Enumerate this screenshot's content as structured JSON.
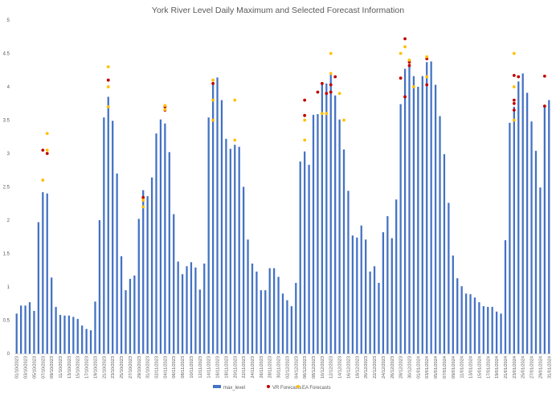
{
  "chart_data": {
    "type": "bar",
    "title": "York River Level Daily Maximum and Selected Forecast Information",
    "xlabel": "",
    "ylabel": "",
    "ylim": [
      0,
      5
    ],
    "yticks": [
      0,
      0.5,
      1,
      1.5,
      2,
      2.5,
      3,
      3.5,
      4,
      4.5,
      5
    ],
    "ytick_labels": [
      "0",
      "0.5",
      "1",
      "1.5",
      "2",
      "2.5",
      "3",
      "3.5",
      "4",
      "4.5",
      "5"
    ],
    "grid": false,
    "legend_position": "bottom",
    "colors": {
      "max_level": "#4472C4",
      "vr": "#C00000",
      "ea": "#FFC000",
      "axis": "#D9D9D9",
      "text": "#595959"
    },
    "x_tick_labels": [
      "01/10/2023",
      "03/10/2023",
      "05/10/2023",
      "07/10/2023",
      "09/10/2023",
      "11/10/2023",
      "13/10/2023",
      "15/10/2023",
      "17/10/2023",
      "19/10/2023",
      "21/10/2023",
      "23/10/2023",
      "25/10/2023",
      "27/10/2023",
      "29/10/2023",
      "31/10/2023",
      "02/11/2023",
      "04/11/2023",
      "06/11/2023",
      "08/11/2023",
      "10/11/2023",
      "12/11/2023",
      "14/11/2023",
      "16/11/2023",
      "18/11/2023",
      "20/11/2023",
      "22/11/2023",
      "24/11/2023",
      "26/11/2023",
      "28/11/2023",
      "30/11/2023",
      "02/12/2023",
      "04/12/2023",
      "06/12/2023",
      "08/12/2023",
      "10/12/2023",
      "12/12/2023",
      "14/12/2023",
      "16/12/2023",
      "18/12/2023",
      "20/12/2023",
      "22/12/2023",
      "24/12/2023",
      "26/12/2023",
      "28/12/2023",
      "30/12/2023",
      "01/01/2024",
      "03/01/2024",
      "05/01/2024",
      "07/01/2024",
      "09/01/2024",
      "11/01/2024",
      "13/01/2024",
      "15/01/2024",
      "17/01/2024",
      "19/01/2024",
      "21/01/2024",
      "23/01/2024",
      "25/01/2024",
      "27/01/2024",
      "29/01/2024",
      "31/01/2024"
    ],
    "series": [
      {
        "name": "max_level",
        "values": [
          0.6,
          0.72,
          0.72,
          0.77,
          0.64,
          1.97,
          2.42,
          2.4,
          1.14,
          0.7,
          0.58,
          0.57,
          0.57,
          0.55,
          0.52,
          0.42,
          0.37,
          0.35,
          0.78,
          2.0,
          3.54,
          3.85,
          3.49,
          2.7,
          1.46,
          0.95,
          1.12,
          1.17,
          2.02,
          2.45,
          2.36,
          2.64,
          3.3,
          3.51,
          3.45,
          3.02,
          2.09,
          1.38,
          1.19,
          1.31,
          1.37,
          1.29,
          0.96,
          1.35,
          3.54,
          4.07,
          4.14,
          3.8,
          3.22,
          3.07,
          3.13,
          3.1,
          2.5,
          1.71,
          1.35,
          1.23,
          0.95,
          0.95,
          1.28,
          1.28,
          1.15,
          0.9,
          0.8,
          0.71,
          1.06,
          2.88,
          3.03,
          2.83,
          3.58,
          3.59,
          4.05,
          4.05,
          4.18,
          3.87,
          3.51,
          3.06,
          2.44,
          1.77,
          1.74,
          1.92,
          1.71,
          1.23,
          1.31,
          1.06,
          1.82,
          2.06,
          1.73,
          2.31,
          3.74,
          4.27,
          4.34,
          4.16,
          4.0,
          4.16,
          4.37,
          4.38,
          4.03,
          3.56,
          2.99,
          2.26,
          1.47,
          1.13,
          1.01,
          0.9,
          0.89,
          0.84,
          0.77,
          0.71,
          0.7,
          0.7,
          0.63,
          0.6,
          1.7,
          3.46,
          3.7,
          4.08,
          4.2,
          3.91,
          3.48,
          3.04,
          2.49,
          3.71,
          3.8
        ]
      },
      {
        "name": "VR Forecasts",
        "points": [
          {
            "x": 6,
            "y": 3.05
          },
          {
            "x": 7,
            "y": 3.0
          },
          {
            "x": 21,
            "y": 4.1
          },
          {
            "x": 29,
            "y": 2.34
          },
          {
            "x": 34,
            "y": 3.7
          },
          {
            "x": 34,
            "y": 3.65
          },
          {
            "x": 45,
            "y": 4.05
          },
          {
            "x": 66,
            "y": 3.8
          },
          {
            "x": 66,
            "y": 3.57
          },
          {
            "x": 69,
            "y": 3.92
          },
          {
            "x": 70,
            "y": 4.05
          },
          {
            "x": 71,
            "y": 3.9
          },
          {
            "x": 72,
            "y": 3.92
          },
          {
            "x": 72,
            "y": 4.03
          },
          {
            "x": 73,
            "y": 4.15
          },
          {
            "x": 88,
            "y": 4.13
          },
          {
            "x": 89,
            "y": 3.85
          },
          {
            "x": 89,
            "y": 4.72
          },
          {
            "x": 90,
            "y": 4.32
          },
          {
            "x": 90,
            "y": 4.37
          },
          {
            "x": 94,
            "y": 4.42
          },
          {
            "x": 94,
            "y": 4.03
          },
          {
            "x": 114,
            "y": 4.17
          },
          {
            "x": 114,
            "y": 3.8
          },
          {
            "x": 114,
            "y": 3.75
          },
          {
            "x": 114,
            "y": 3.65
          },
          {
            "x": 115,
            "y": 4.15
          },
          {
            "x": 121,
            "y": 4.16
          },
          {
            "x": 121,
            "y": 3.71
          }
        ]
      },
      {
        "name": "EA Forecasts",
        "points": [
          {
            "x": 6,
            "y": 2.6
          },
          {
            "x": 7,
            "y": 3.3
          },
          {
            "x": 7,
            "y": 3.05
          },
          {
            "x": 21,
            "y": 4.3
          },
          {
            "x": 21,
            "y": 4.0
          },
          {
            "x": 21,
            "y": 3.7
          },
          {
            "x": 29,
            "y": 2.3
          },
          {
            "x": 29,
            "y": 2.2
          },
          {
            "x": 34,
            "y": 3.72
          },
          {
            "x": 34,
            "y": 3.66
          },
          {
            "x": 45,
            "y": 4.1
          },
          {
            "x": 45,
            "y": 3.8
          },
          {
            "x": 45,
            "y": 3.5
          },
          {
            "x": 50,
            "y": 3.8
          },
          {
            "x": 50,
            "y": 3.2
          },
          {
            "x": 66,
            "y": 3.5
          },
          {
            "x": 66,
            "y": 3.2
          },
          {
            "x": 70,
            "y": 3.6
          },
          {
            "x": 71,
            "y": 3.6
          },
          {
            "x": 72,
            "y": 4.5
          },
          {
            "x": 72,
            "y": 4.2
          },
          {
            "x": 74,
            "y": 3.9
          },
          {
            "x": 75,
            "y": 3.5
          },
          {
            "x": 88,
            "y": 4.5
          },
          {
            "x": 89,
            "y": 4.6
          },
          {
            "x": 90,
            "y": 4.4
          },
          {
            "x": 91,
            "y": 4.0
          },
          {
            "x": 94,
            "y": 4.45
          },
          {
            "x": 94,
            "y": 4.15
          },
          {
            "x": 114,
            "y": 4.5
          },
          {
            "x": 114,
            "y": 4.0
          },
          {
            "x": 114,
            "y": 3.5
          }
        ]
      }
    ]
  }
}
